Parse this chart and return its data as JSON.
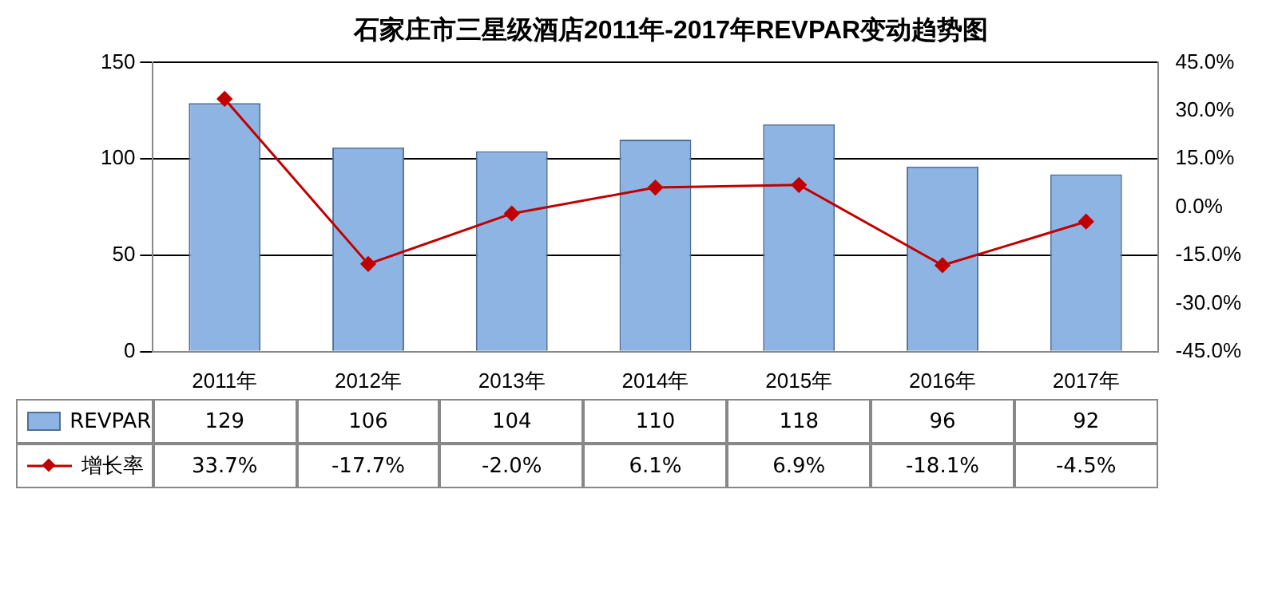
{
  "chart_data": {
    "type": "bar",
    "title": "石家庄市三星级酒店2011年-2017年REVPAR变动趋势图",
    "categories": [
      "2011年",
      "2012年",
      "2013年",
      "2014年",
      "2015年",
      "2016年",
      "2017年"
    ],
    "series": [
      {
        "name": "REVPAR",
        "color": "#8db4e2",
        "values": [
          129,
          106,
          104,
          110,
          118,
          96,
          92
        ]
      },
      {
        "name": "增长率",
        "type": "line",
        "axis": "y2",
        "color": "#c00000",
        "values": [
          33.7,
          -17.7,
          -2.0,
          6.1,
          6.9,
          -18.1,
          -4.5
        ],
        "value_labels": [
          "33.7%",
          "-17.7%",
          "-2.0%",
          "6.1%",
          "6.9%",
          "-18.1%",
          "-4.5%"
        ]
      }
    ],
    "ylim": [
      0,
      150
    ],
    "yticks": [
      0,
      50,
      100,
      150
    ],
    "y2lim": [
      -45,
      45
    ],
    "y2ticks": [
      {
        "value": -45,
        "label": "-45.0%"
      },
      {
        "value": -30,
        "label": "-30.0%"
      },
      {
        "value": -15,
        "label": "-15.0%"
      },
      {
        "value": 0,
        "label": "0.0%"
      },
      {
        "value": 15,
        "label": "15.0%"
      },
      {
        "value": 30,
        "label": "30.0%"
      },
      {
        "value": 45,
        "label": "45.0%"
      }
    ],
    "grid": "y",
    "legend": "bottom left",
    "marker": "diamond",
    "line_style": "solid",
    "data_labels": true
  }
}
